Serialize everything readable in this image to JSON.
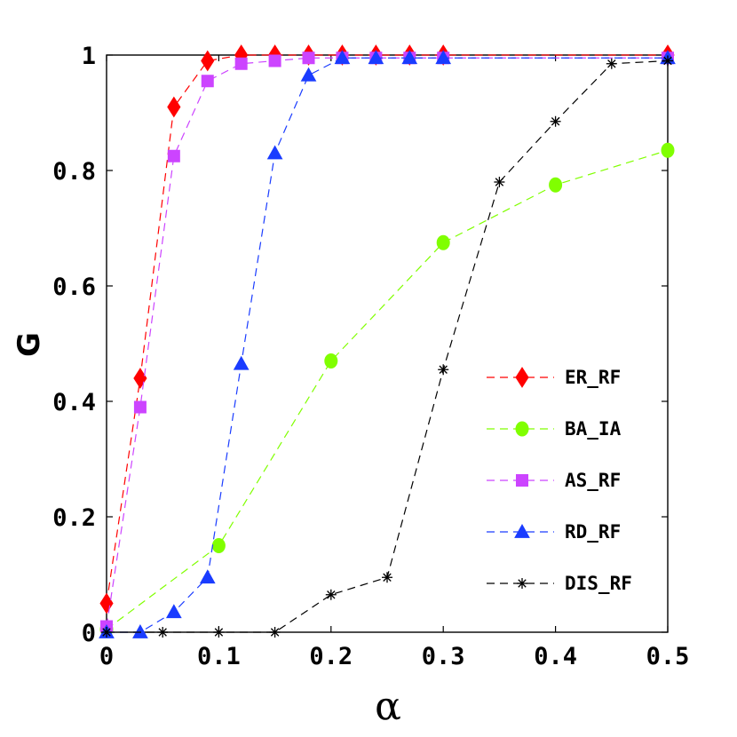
{
  "chart_data": {
    "type": "line",
    "xlabel": "α",
    "ylabel": "G",
    "xlim": [
      0,
      0.5
    ],
    "ylim": [
      0,
      1
    ],
    "x_ticks": [
      "0",
      "0.1",
      "0.2",
      "0.3",
      "0.4",
      "0.5"
    ],
    "y_ticks": [
      "0",
      "0.2",
      "0.4",
      "0.6",
      "0.8",
      "1"
    ],
    "grid": false,
    "legend_position": "center-right",
    "series": [
      {
        "name": "ER_RF",
        "color": "#ff0000",
        "marker": "diamond",
        "x": [
          0,
          0.03,
          0.06,
          0.09,
          0.12,
          0.15,
          0.18,
          0.21,
          0.24,
          0.27,
          0.3,
          0.5
        ],
        "y": [
          0.05,
          0.44,
          0.91,
          0.99,
          1.0,
          1.0,
          1.0,
          1.0,
          1.0,
          1.0,
          1.0,
          1.0
        ]
      },
      {
        "name": "BA_IA",
        "color": "#80ff00",
        "marker": "circle",
        "x": [
          0,
          0.1,
          0.2,
          0.3,
          0.4,
          0.5
        ],
        "y": [
          0.005,
          0.15,
          0.47,
          0.675,
          0.775,
          0.835
        ]
      },
      {
        "name": "AS_RF",
        "color": "#cc44ff",
        "marker": "square",
        "x": [
          0,
          0.03,
          0.06,
          0.09,
          0.12,
          0.15,
          0.18,
          0.21,
          0.24,
          0.27,
          0.3,
          0.5
        ],
        "y": [
          0.01,
          0.39,
          0.825,
          0.955,
          0.985,
          0.99,
          0.995,
          0.995,
          0.995,
          0.995,
          0.995,
          0.995
        ]
      },
      {
        "name": "RD_RF",
        "color": "#1a3cff",
        "marker": "triangle",
        "x": [
          0,
          0.03,
          0.06,
          0.09,
          0.12,
          0.15,
          0.18,
          0.21,
          0.24,
          0.27,
          0.3,
          0.5
        ],
        "y": [
          0.0,
          0.0,
          0.035,
          0.095,
          0.465,
          0.83,
          0.965,
          0.995,
          0.995,
          0.995,
          0.995,
          0.995
        ]
      },
      {
        "name": "DIS_RF",
        "color": "#000000",
        "marker": "star",
        "x": [
          0,
          0.05,
          0.1,
          0.15,
          0.2,
          0.25,
          0.3,
          0.35,
          0.4,
          0.45,
          0.5
        ],
        "y": [
          0.0,
          0.0,
          0.0,
          0.0,
          0.065,
          0.095,
          0.455,
          0.78,
          0.885,
          0.985,
          0.99
        ]
      }
    ]
  }
}
